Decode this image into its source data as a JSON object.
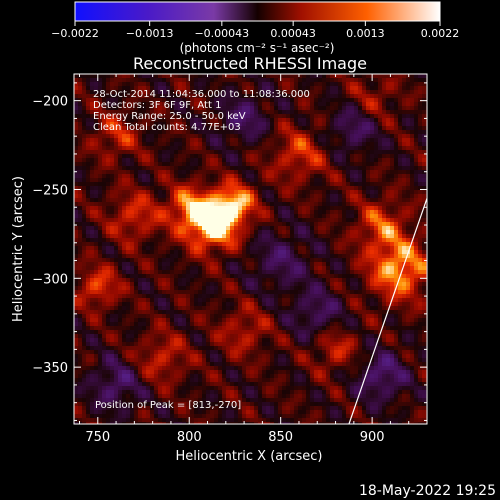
{
  "chart_data": {
    "type": "heatmap",
    "title": "Reconstructed RHESSI Image",
    "xlabel": "Heliocentric X (arcsec)",
    "ylabel": "Heliocentric Y (arcsec)",
    "xlim": [
      737,
      930
    ],
    "ylim": [
      -382,
      -185
    ],
    "xticks": [
      750,
      800,
      850,
      900
    ],
    "xtick_labels": [
      "750",
      "800",
      "850",
      "900"
    ],
    "yticks": [
      -200,
      -250,
      -300,
      -350
    ],
    "ytick_labels": [
      "−200",
      "−250",
      "−300",
      "−350"
    ],
    "colorbar": {
      "range": [
        -0.0022,
        0.0022
      ],
      "ticks": [
        -0.0022,
        -0.0013,
        -0.00043,
        0.00043,
        0.0013,
        0.0022
      ],
      "tick_labels": [
        "−0.0022",
        "−0.0013",
        "−0.00043",
        "0.00043",
        "0.0013",
        "0.0022"
      ],
      "label": "(photons cm⁻² s⁻¹ asec⁻²)"
    },
    "annotations": [
      "28-Oct-2014 11:04:36.000 to 11:08:36.000",
      "Detectors: 3F 6F 9F, Att 1",
      "Energy Range: 25.0 - 50.0 keV",
      "Clean    Total counts: 4.77E+03",
      "Position of Peak = [813,-270]"
    ],
    "peak": {
      "x": 813,
      "y": -270
    },
    "sources": [
      {
        "x": 813,
        "y": -270,
        "value": 0.0022,
        "size": 10
      },
      {
        "x": 825,
        "y": -258,
        "value": 0.0016,
        "size": 8
      },
      {
        "x": 800,
        "y": -260,
        "value": 0.0013,
        "size": 9
      },
      {
        "x": 915,
        "y": -295,
        "value": 0.0017,
        "size": 12
      },
      {
        "x": 905,
        "y": -270,
        "value": 0.0011,
        "size": 10
      },
      {
        "x": 880,
        "y": -340,
        "value": 0.0009,
        "size": 9
      },
      {
        "x": 750,
        "y": -305,
        "value": 0.0012,
        "size": 8
      },
      {
        "x": 770,
        "y": -265,
        "value": 0.001,
        "size": 10
      },
      {
        "x": 860,
        "y": -230,
        "value": 0.001,
        "size": 11
      },
      {
        "x": 785,
        "y": -345,
        "value": 0.0009,
        "size": 10
      },
      {
        "x": 830,
        "y": -330,
        "value": 0.0008,
        "size": 10
      },
      {
        "x": 900,
        "y": -200,
        "value": 0.0007,
        "size": 10
      },
      {
        "x": 760,
        "y": -220,
        "value": 0.0009,
        "size": 9
      },
      {
        "x": 850,
        "y": -290,
        "value": -0.0008,
        "size": 12
      },
      {
        "x": 830,
        "y": -210,
        "value": -0.0009,
        "size": 10
      },
      {
        "x": 760,
        "y": -360,
        "value": -0.001,
        "size": 10
      },
      {
        "x": 890,
        "y": -215,
        "value": -0.001,
        "size": 10
      },
      {
        "x": 905,
        "y": -355,
        "value": -0.0011,
        "size": 10
      },
      {
        "x": 870,
        "y": -320,
        "value": -0.0009,
        "size": 10
      }
    ],
    "limb_line": {
      "x": [
        887,
        931
      ],
      "y": [
        -383,
        -252
      ]
    }
  },
  "footer": {
    "date": "18-May-2022 19:25"
  },
  "colors": {
    "background": "#000000",
    "text": "#ffffff",
    "limb": "#ffffff"
  }
}
